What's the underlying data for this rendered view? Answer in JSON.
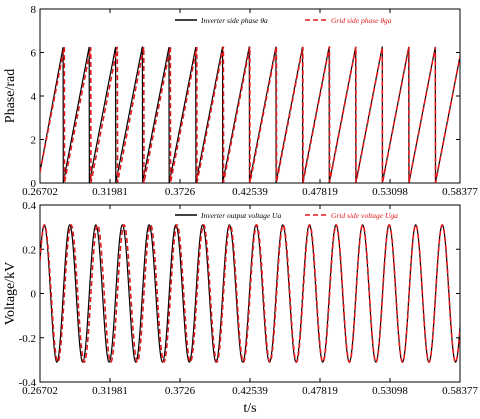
{
  "colors": {
    "inverter": "#000000",
    "grid": "#e31a1c",
    "axis": "#000000",
    "background": "#ffffff"
  },
  "chart_data": [
    {
      "type": "line",
      "title": "",
      "xlabel": "",
      "ylabel": "Phase/rad",
      "xlim": [
        0.26702,
        0.58377
      ],
      "ylim": [
        0,
        8
      ],
      "grid": false,
      "legend_position": "top-right",
      "x_tick_labels": [
        "0.26702",
        "0.31981",
        "0.3726",
        "0.42539",
        "0.47819",
        "0.53098",
        "0.58377"
      ],
      "y_tick_labels": [
        "0",
        "2",
        "4",
        "6",
        "8"
      ],
      "signal": {
        "kind": "phase-sawtooth",
        "wrap_at": 6.28,
        "frequency_hz": 50,
        "visible_cycles": 16
      },
      "series": [
        {
          "name": "Inverter side phase θa",
          "style": "solid",
          "color": "#000000",
          "phase_lag_rad": 0.0,
          "transient_amplitude": 0.0,
          "frequency_deviation_hz": 3.5
        },
        {
          "name": "Grid side phase θga",
          "style": "dashed",
          "color": "#e31a1c",
          "phase_lag_rad": 0.0,
          "transient_amplitude": 0.0,
          "frequency_deviation_hz": 0.0
        }
      ]
    },
    {
      "type": "line",
      "title": "",
      "xlabel": "t/s",
      "ylabel": "Voltage/kV",
      "xlim": [
        0.26702,
        0.58377
      ],
      "ylim": [
        -0.4,
        0.4
      ],
      "grid": false,
      "legend_position": "top-right",
      "x_tick_labels": [
        "0.26702",
        "0.31981",
        "0.3726",
        "0.42539",
        "0.47819",
        "0.53098",
        "0.58377"
      ],
      "y_tick_labels": [
        "-0.4",
        "-0.2",
        "0",
        "0.2",
        "0.4"
      ],
      "signal": {
        "kind": "sinusoid",
        "amplitude_kv": 0.31,
        "frequency_hz": 50
      },
      "series": [
        {
          "name": "Inverter output voltage Ua",
          "style": "solid",
          "color": "#000000",
          "phase_lag_rad": 0.0,
          "frequency_deviation_hz": 3.5
        },
        {
          "name": "Grid side voltage Uga",
          "style": "dashed",
          "color": "#e31a1c",
          "phase_lag_rad": 0.0,
          "frequency_deviation_hz": 0.0
        }
      ]
    }
  ]
}
